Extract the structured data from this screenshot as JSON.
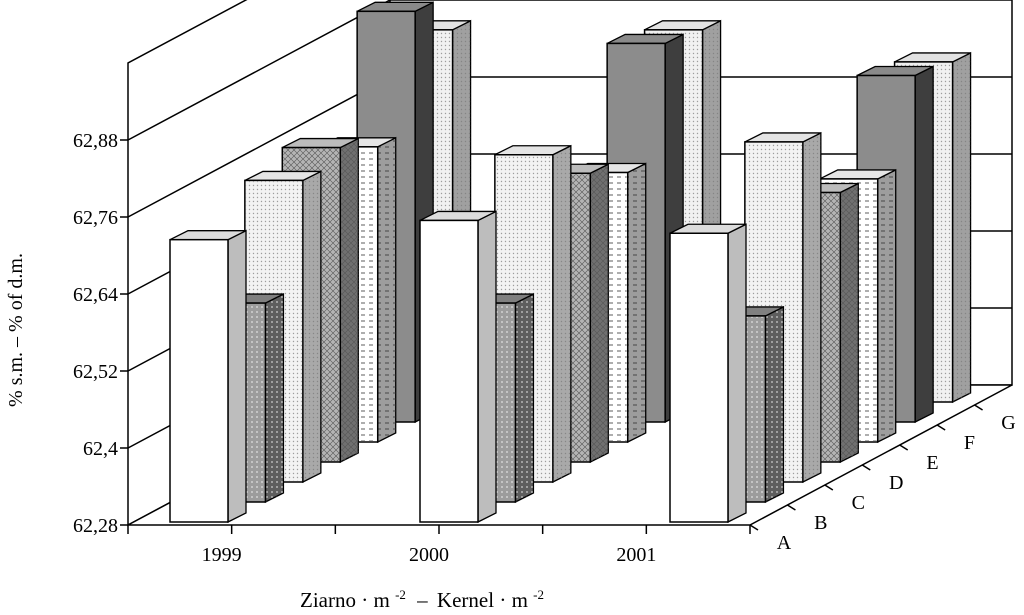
{
  "chart_data": {
    "type": "bar",
    "subtype": "3d-clustered",
    "categories": [
      "1999",
      "2000",
      "2001"
    ],
    "depth_categories": [
      "A",
      "B",
      "C",
      "D",
      "E",
      "F",
      "G"
    ],
    "ylabel": "% s.m. – % of d.m.",
    "xlabel": "Ziarno·m-2 – Kernel·m-2",
    "xlabel_parts": {
      "part1": "Ziarno",
      "unit1": "m",
      "exp1": "-2",
      "sep": "–",
      "part2": "Kernel",
      "unit2": "m",
      "exp2": "-2"
    },
    "yticks": [
      "62,28",
      "62,4",
      "62,52",
      "62,64",
      "62,76",
      "62,88"
    ],
    "ylim": [
      62.28,
      63.0
    ],
    "grid": true,
    "series": [
      {
        "values": [
          62.72,
          62.75,
          62.73
        ]
      },
      {
        "values": [
          62.59,
          62.59,
          62.57
        ]
      },
      {
        "values": [
          62.75,
          62.79,
          62.81
        ]
      },
      {
        "values": [
          62.77,
          62.73,
          62.7
        ]
      },
      {
        "values": [
          62.74,
          62.7,
          62.69
        ]
      },
      {
        "values": [
          62.92,
          62.87,
          62.82
        ]
      },
      {
        "values": [
          62.86,
          62.86,
          62.81
        ]
      }
    ],
    "colors": {
      "front": [
        "#ffffff",
        "#9c9c9c",
        "#f3f3f3",
        "#b4b4b4",
        "#ffffff",
        "#8c8c8c",
        "#f1f1f1"
      ],
      "side": [
        "#bdbdbd",
        "#5e5e5e",
        "#a9a9a9",
        "#707070",
        "#9d9d9d",
        "#3e3e3e",
        "#a0a0a0"
      ],
      "top": [
        "#dcdcdc",
        "#808080",
        "#e4e4e4",
        "#bcbcbc",
        "#e6e6e6",
        "#8a8a8a",
        "#e2e2e2"
      ],
      "patterns": [
        "none",
        "dots",
        "fine-dots",
        "crosshatch",
        "dashes",
        "none",
        "fine-dots"
      ]
    }
  }
}
